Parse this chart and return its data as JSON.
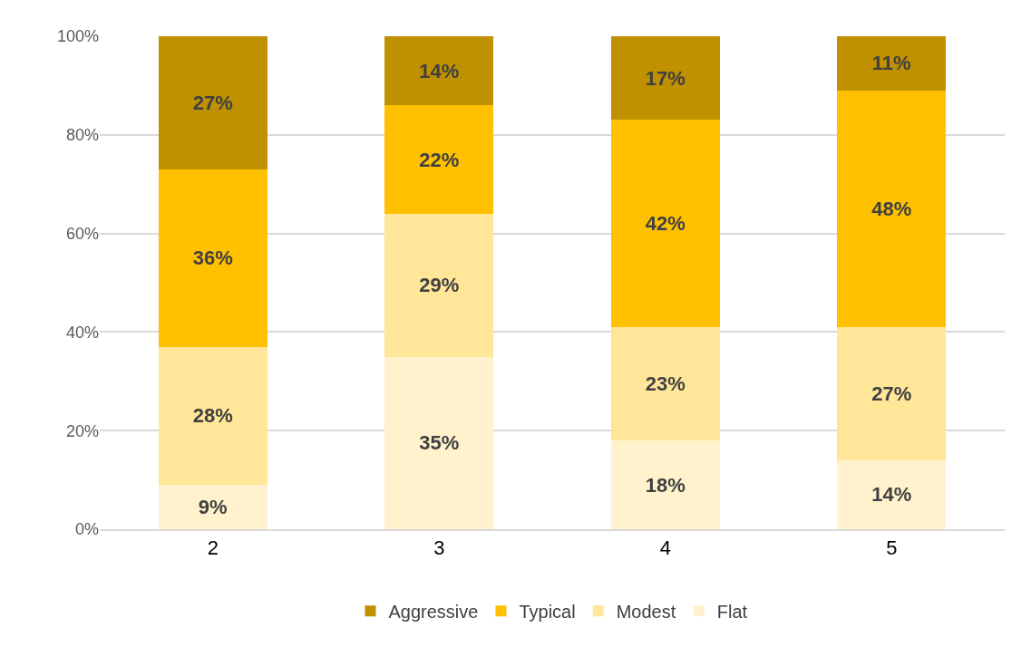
{
  "chart_data": {
    "type": "bar",
    "stacked": true,
    "categories": [
      "2",
      "3",
      "4",
      "5"
    ],
    "series": [
      {
        "name": "Flat",
        "color": "#fff2cc",
        "values": [
          9,
          35,
          18,
          14
        ],
        "value_labels": [
          "9%",
          "35%",
          "18%",
          "14%"
        ]
      },
      {
        "name": "Modest",
        "color": "#ffe699",
        "values": [
          28,
          29,
          23,
          27
        ],
        "value_labels": [
          "28%",
          "29%",
          "23%",
          "27%"
        ]
      },
      {
        "name": "Typical",
        "color": "#ffc000",
        "values": [
          36,
          22,
          42,
          48
        ],
        "value_labels": [
          "36%",
          "22%",
          "42%",
          "48%"
        ]
      },
      {
        "name": "Aggressive",
        "color": "#bf9000",
        "values": [
          27,
          14,
          17,
          11
        ],
        "value_labels": [
          "27%",
          "14%",
          "17%",
          "11%"
        ]
      }
    ],
    "ylim": [
      0,
      100
    ],
    "yticks": [
      {
        "value": 0,
        "label": "0%"
      },
      {
        "value": 20,
        "label": "20%"
      },
      {
        "value": 40,
        "label": "40%"
      },
      {
        "value": 60,
        "label": "60%"
      },
      {
        "value": 80,
        "label": "80%"
      },
      {
        "value": 100,
        "label": "100%"
      }
    ],
    "grid": "y",
    "legend": "bottom"
  }
}
